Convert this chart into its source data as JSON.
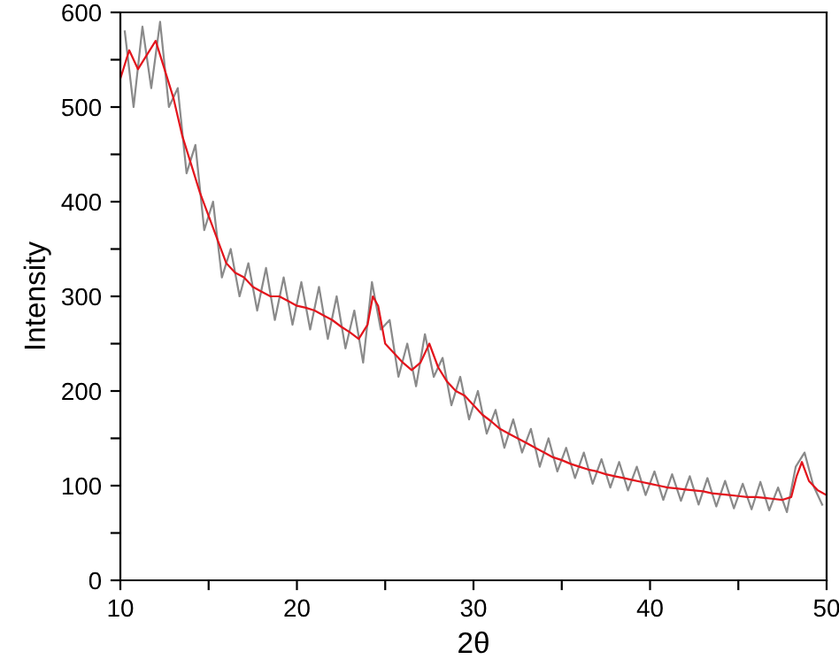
{
  "chart_data": {
    "type": "line",
    "xlabel": "2θ",
    "ylabel": "Intensity",
    "xlim": [
      10,
      50
    ],
    "ylim": [
      0,
      600
    ],
    "xticks": [
      10,
      {
        "value": 15,
        "label": null
      },
      20,
      {
        "value": 25,
        "label": null
      },
      30,
      {
        "value": 35,
        "label": null
      },
      40,
      {
        "value": 45,
        "label": null
      },
      50
    ],
    "yticks": [
      0,
      {
        "value": 50,
        "label": null
      },
      100,
      {
        "value": 150,
        "label": null
      },
      200,
      {
        "value": 250,
        "label": null
      },
      300,
      {
        "value": 350,
        "label": null
      },
      400,
      {
        "value": 450,
        "label": null
      },
      500,
      {
        "value": 550,
        "label": null
      },
      600
    ],
    "grid": false,
    "marker": "none",
    "line_style": "solid",
    "series": [
      {
        "color": "#8a8a8a",
        "x": [
          10.25,
          10.75,
          11.25,
          11.75,
          12.25,
          12.75,
          13.25,
          13.75,
          14.25,
          14.75,
          15.25,
          15.75,
          16.25,
          16.75,
          17.25,
          17.75,
          18.25,
          18.75,
          19.25,
          19.75,
          20.25,
          20.75,
          21.25,
          21.75,
          22.25,
          22.75,
          23.25,
          23.75,
          24.25,
          24.75,
          25.25,
          25.75,
          26.25,
          26.75,
          27.25,
          27.75,
          28.25,
          28.75,
          29.25,
          29.75,
          30.25,
          30.75,
          31.25,
          31.75,
          32.25,
          32.75,
          33.25,
          33.75,
          34.25,
          34.75,
          35.25,
          35.75,
          36.25,
          36.75,
          37.25,
          37.75,
          38.25,
          38.75,
          39.25,
          39.75,
          40.25,
          40.75,
          41.25,
          41.75,
          42.25,
          42.75,
          43.25,
          43.75,
          44.25,
          44.75,
          45.25,
          45.75,
          46.25,
          46.75,
          47.25,
          47.75,
          48.25,
          48.75,
          49.25,
          49.75
        ],
        "values": [
          580,
          500,
          585,
          520,
          590,
          500,
          520,
          430,
          460,
          370,
          400,
          320,
          350,
          300,
          335,
          285,
          330,
          275,
          320,
          270,
          315,
          265,
          310,
          255,
          300,
          245,
          285,
          230,
          315,
          265,
          275,
          215,
          250,
          205,
          260,
          215,
          235,
          185,
          215,
          170,
          200,
          155,
          180,
          140,
          170,
          135,
          160,
          120,
          150,
          115,
          140,
          108,
          135,
          102,
          128,
          98,
          125,
          95,
          120,
          90,
          115,
          85,
          112,
          84,
          110,
          80,
          108,
          78,
          105,
          76,
          102,
          75,
          104,
          74,
          98,
          72,
          120,
          135,
          100,
          80
        ]
      },
      {
        "color": "#e3141c",
        "x": [
          10,
          10.5,
          11,
          11.5,
          12,
          12.5,
          13,
          13.5,
          14,
          14.5,
          15,
          15.5,
          16,
          16.5,
          17,
          17.5,
          18,
          18.5,
          19,
          19.5,
          20,
          20.5,
          21,
          21.5,
          22,
          22.5,
          23,
          23.5,
          24,
          24.3,
          24.6,
          25,
          25.5,
          26,
          26.5,
          27,
          27.5,
          28,
          28.5,
          29,
          29.5,
          30,
          30.5,
          31,
          31.5,
          32,
          32.5,
          33,
          33.5,
          34,
          34.5,
          35,
          35.5,
          36,
          36.5,
          37,
          37.5,
          38,
          38.5,
          39,
          39.5,
          40,
          40.5,
          41,
          41.5,
          42,
          42.5,
          43,
          43.5,
          44,
          44.5,
          45,
          45.5,
          46,
          46.5,
          47,
          47.5,
          48,
          48.3,
          48.6,
          49,
          49.5,
          50
        ],
        "values": [
          530,
          560,
          540,
          555,
          570,
          540,
          510,
          470,
          440,
          410,
          385,
          360,
          335,
          325,
          320,
          310,
          305,
          300,
          300,
          295,
          290,
          288,
          285,
          280,
          275,
          268,
          262,
          255,
          270,
          300,
          290,
          250,
          240,
          230,
          222,
          230,
          250,
          225,
          210,
          200,
          195,
          185,
          175,
          168,
          160,
          155,
          150,
          145,
          140,
          135,
          130,
          127,
          123,
          120,
          117,
          115,
          112,
          110,
          108,
          106,
          104,
          102,
          100,
          98,
          97,
          96,
          95,
          94,
          92,
          91,
          90,
          89,
          88,
          88,
          87,
          86,
          85,
          88,
          110,
          125,
          105,
          95,
          90
        ]
      }
    ]
  }
}
